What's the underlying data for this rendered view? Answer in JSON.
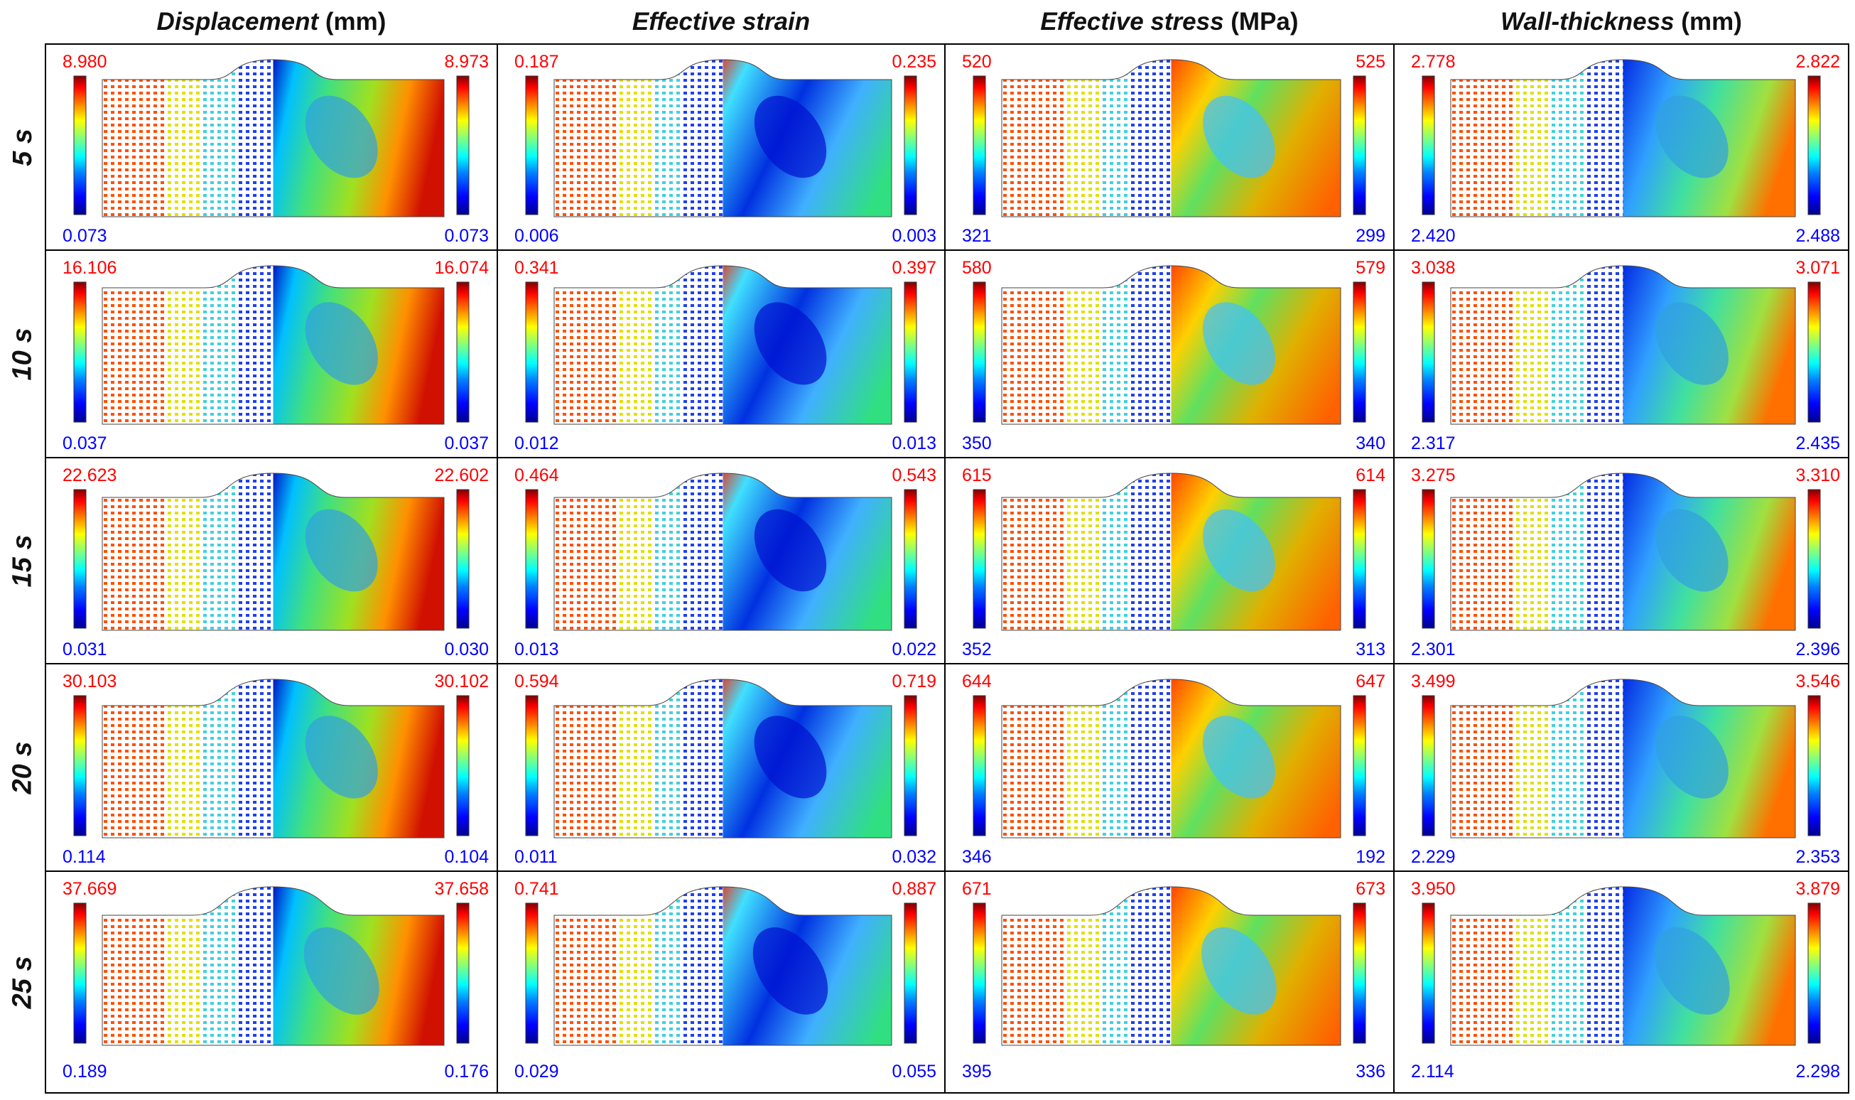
{
  "columns": [
    {
      "name": "Displacement",
      "unit": "(mm)"
    },
    {
      "name": "Effective strain",
      "unit": ""
    },
    {
      "name": "Effective stress",
      "unit": "(MPa)"
    },
    {
      "name": "Wall-thickness",
      "unit": "(mm)"
    }
  ],
  "rows": [
    "5 s",
    "10 s",
    "15 s",
    "20 s",
    "25 s"
  ],
  "colors": {
    "max_text": "#ff0000",
    "min_text": "#0000ff",
    "border": "#000000"
  },
  "color_scale": [
    "#00008f",
    "#0000ff",
    "#0080ff",
    "#00ffff",
    "#80ff80",
    "#ffff00",
    "#ff8000",
    "#ff0000",
    "#800000"
  ],
  "legend_values": [
    [
      {
        "left_max": "8.980",
        "left_min": "0.073",
        "right_max": "8.973",
        "right_min": "0.073"
      },
      {
        "left_max": "0.187",
        "left_min": "0.006",
        "right_max": "0.235",
        "right_min": "0.003"
      },
      {
        "left_max": "520",
        "left_min": "321",
        "right_max": "525",
        "right_min": "299"
      },
      {
        "left_max": "2.778",
        "left_min": "2.420",
        "right_max": "2.822",
        "right_min": "2.488"
      }
    ],
    [
      {
        "left_max": "16.106",
        "left_min": "0.037",
        "right_max": "16.074",
        "right_min": "0.037"
      },
      {
        "left_max": "0.341",
        "left_min": "0.012",
        "right_max": "0.397",
        "right_min": "0.013"
      },
      {
        "left_max": "580",
        "left_min": "350",
        "right_max": "579",
        "right_min": "340"
      },
      {
        "left_max": "3.038",
        "left_min": "2.317",
        "right_max": "3.071",
        "right_min": "2.435"
      }
    ],
    [
      {
        "left_max": "22.623",
        "left_min": "0.031",
        "right_max": "22.602",
        "right_min": "0.030"
      },
      {
        "left_max": "0.464",
        "left_min": "0.013",
        "right_max": "0.543",
        "right_min": "0.022"
      },
      {
        "left_max": "615",
        "left_min": "352",
        "right_max": "614",
        "right_min": "313"
      },
      {
        "left_max": "3.275",
        "left_min": "2.301",
        "right_max": "3.310",
        "right_min": "2.396"
      }
    ],
    [
      {
        "left_max": "30.103",
        "left_min": "0.114",
        "right_max": "30.102",
        "right_min": "0.104"
      },
      {
        "left_max": "0.594",
        "left_min": "0.011",
        "right_max": "0.719",
        "right_min": "0.032"
      },
      {
        "left_max": "644",
        "left_min": "346",
        "right_max": "647",
        "right_min": "192"
      },
      {
        "left_max": "3.499",
        "left_min": "2.229",
        "right_max": "3.546",
        "right_min": "2.353"
      }
    ],
    [
      {
        "left_max": "37.669",
        "left_min": "0.189",
        "right_max": "37.658",
        "right_min": "0.176"
      },
      {
        "left_max": "0.741",
        "left_min": "0.029",
        "right_max": "0.887",
        "right_min": "0.055"
      },
      {
        "left_max": "671",
        "left_min": "395",
        "right_max": "673",
        "right_min": "336"
      },
      {
        "left_max": "3.950",
        "left_min": "2.114",
        "right_max": "3.879",
        "right_min": "2.298"
      }
    ]
  ]
}
